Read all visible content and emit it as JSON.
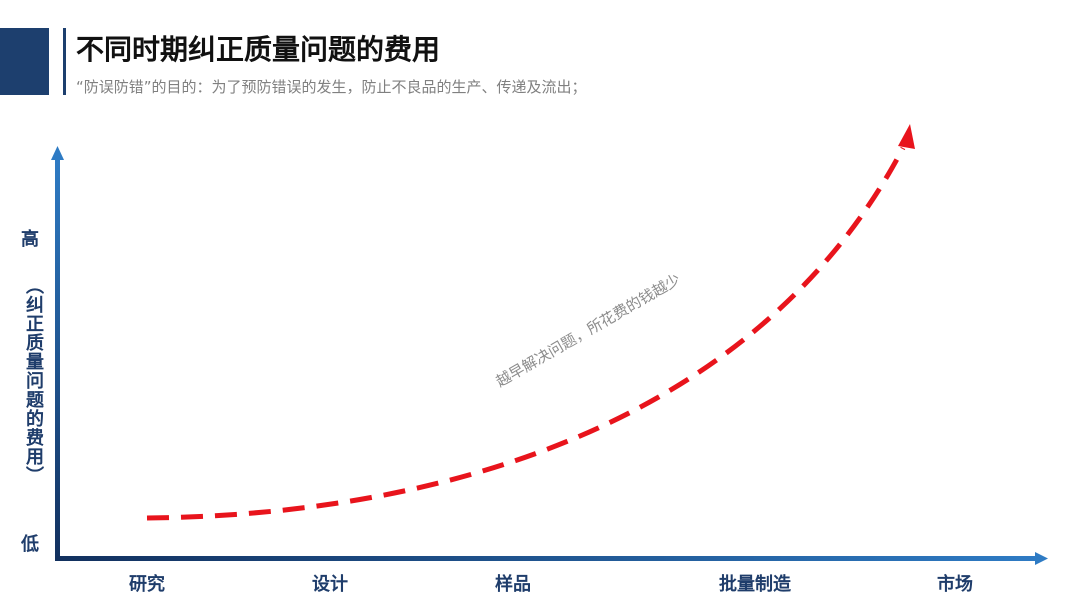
{
  "header": {
    "title": "不同时期纠正质量问题的费用",
    "subtitle": "“防误防错”的目的：为了预防错误的发生，防止不良品的生产、传递及流出；"
  },
  "diagram": {
    "y_axis": {
      "high": "高",
      "label": "（纠正质量问题的费用）",
      "low": "低"
    },
    "stages": [
      "研究",
      "设计",
      "样品",
      "批量制造",
      "市场"
    ],
    "annotation": "越早解决问题，所花费的钱越少"
  }
}
